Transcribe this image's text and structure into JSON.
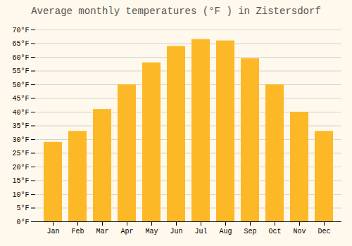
{
  "chart_data": {
    "type": "bar",
    "title": "Average monthly temperatures (°F ) in Zistersdorf",
    "categories": [
      "Jan",
      "Feb",
      "Mar",
      "Apr",
      "May",
      "Jun",
      "Jul",
      "Aug",
      "Sep",
      "Oct",
      "Nov",
      "Dec"
    ],
    "values": [
      29,
      33,
      41,
      50,
      58,
      64,
      66.5,
      66,
      59.5,
      50,
      40,
      33
    ],
    "color": "#FDB827",
    "ylim": [
      0,
      70
    ],
    "yticks": [
      {
        "value": 0,
        "label": "0°F"
      },
      {
        "value": 5,
        "label": "5°F"
      },
      {
        "value": 10,
        "label": "10°F"
      },
      {
        "value": 15,
        "label": "15°F"
      },
      {
        "value": 20,
        "label": "20°F"
      },
      {
        "value": 25,
        "label": "25°F"
      },
      {
        "value": 30,
        "label": "30°F"
      },
      {
        "value": 35,
        "label": "35°F"
      },
      {
        "value": 40,
        "label": "40°F"
      },
      {
        "value": 45,
        "label": "45°F"
      },
      {
        "value": 50,
        "label": "50°F"
      },
      {
        "value": 55,
        "label": "55°F"
      },
      {
        "value": 60,
        "label": "60°F"
      },
      {
        "value": 65,
        "label": "65°F"
      },
      {
        "value": 70,
        "label": "70°F"
      }
    ],
    "grid": true
  }
}
